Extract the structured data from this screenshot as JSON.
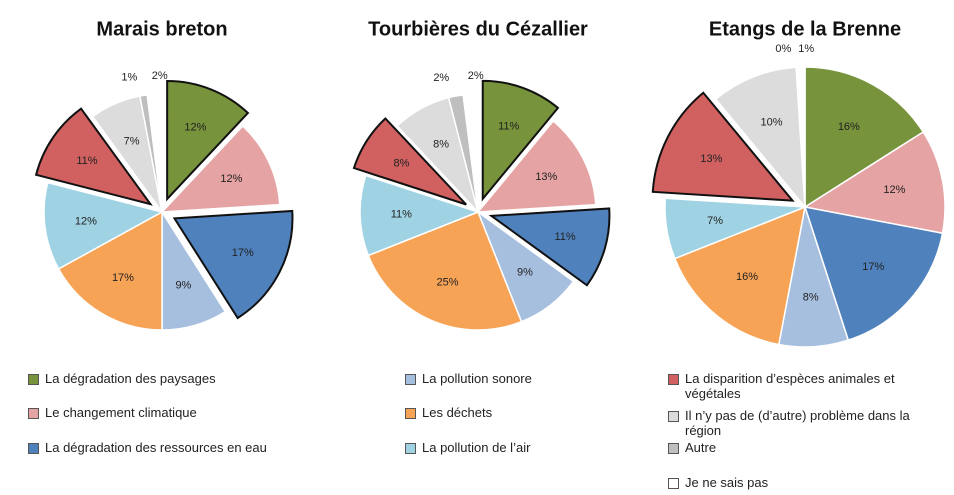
{
  "chart_data": [
    {
      "type": "pie",
      "title": "Marais breton",
      "categories": [
        "La dégradation des paysages",
        "Le changement climatique",
        "La dégradation des ressources en eau",
        "La pollution sonore",
        "Les déchets",
        "La pollution de l’air",
        "La disparition d’espèces animales et végétales",
        "Il n’y pas de (d’autre) problème dans la région",
        "Autre",
        "Je ne sais pas"
      ],
      "values": [
        12,
        12,
        17,
        9,
        17,
        12,
        11,
        7,
        1,
        2
      ],
      "value_labels": [
        "12%",
        "12%",
        "17%",
        "9%",
        "17%",
        "12%",
        "11%",
        "7%",
        "1%",
        "2%"
      ],
      "colors": [
        "#77933c",
        "#e6a3a3",
        "#4f81bd",
        "#a7bfdf",
        "#f7a356",
        "#9fd3e3",
        "#d06160",
        "#dcdcdc",
        "#bfbfbf",
        "#ffffff"
      ],
      "exploded": [
        0,
        2,
        6
      ]
    },
    {
      "type": "pie",
      "title": "Tourbières du Cézallier",
      "categories": [
        "La dégradation des paysages",
        "Le changement climatique",
        "La dégradation des ressources en eau",
        "La pollution sonore",
        "Les déchets",
        "La pollution de l’air",
        "La disparition d’espèces animales et végétales",
        "Il n’y pas de (d’autre) problème dans la région",
        "Autre",
        "Je ne sais pas"
      ],
      "values": [
        11,
        13,
        11,
        9,
        25,
        11,
        8,
        8,
        2,
        2
      ],
      "value_labels": [
        "11%",
        "13%",
        "11%",
        "9%",
        "25%",
        "11%",
        "8%",
        "8%",
        "2%",
        "2%"
      ],
      "colors": [
        "#77933c",
        "#e6a3a3",
        "#4f81bd",
        "#a7bfdf",
        "#f7a356",
        "#9fd3e3",
        "#d06160",
        "#dcdcdc",
        "#bfbfbf",
        "#ffffff"
      ],
      "exploded": [
        0,
        2,
        6
      ]
    },
    {
      "type": "pie",
      "title": "Etangs de la Brenne",
      "categories": [
        "La dégradation des paysages",
        "Le changement climatique",
        "La dégradation des ressources en eau",
        "La pollution sonore",
        "Les déchets",
        "La pollution de l’air",
        "La disparition d’espèces animales et végétales",
        "Il n’y pas de (d’autre) problème dans la région",
        "Autre",
        "Je ne sais pas"
      ],
      "values": [
        16,
        12,
        17,
        8,
        16,
        7,
        13,
        10,
        0,
        1
      ],
      "value_labels": [
        "16%",
        "12%",
        "17%",
        "8%",
        "16%",
        "7%",
        "13%",
        "10%",
        "0%",
        "1%"
      ],
      "colors": [
        "#77933c",
        "#e6a3a3",
        "#4f81bd",
        "#a7bfdf",
        "#f7a356",
        "#9fd3e3",
        "#d06160",
        "#dcdcdc",
        "#bfbfbf",
        "#ffffff"
      ],
      "exploded": [
        6
      ]
    }
  ]
}
